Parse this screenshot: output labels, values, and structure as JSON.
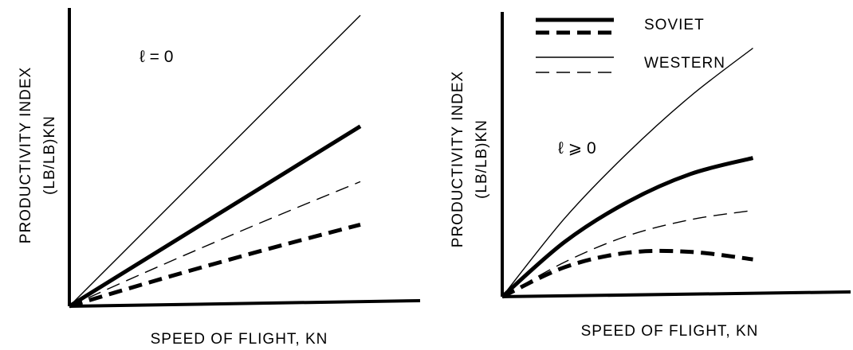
{
  "chart_data": [
    {
      "type": "line",
      "xlabel": "SPEED OF FLIGHT, KN",
      "ylabel_line1": "PRODUCTIVITY INDEX",
      "ylabel_line2": "(LB/LB)KN",
      "annotation": "ℓ = 0",
      "x": [
        0,
        0.25,
        0.5,
        0.75,
        1.0
      ],
      "series": [
        {
          "name": "SOVIET",
          "style": "solid",
          "weight": "heavy",
          "values": [
            0,
            0.245,
            0.49,
            0.735,
            0.98
          ]
        },
        {
          "name": "SOVIET",
          "style": "dashed",
          "weight": "heavy",
          "values": [
            0,
            0.115,
            0.225,
            0.33,
            0.43
          ]
        },
        {
          "name": "WESTERN",
          "style": "solid",
          "weight": "light",
          "values": [
            0,
            0.4,
            0.8,
            1.2,
            1.6
          ]
        },
        {
          "name": "WESTERN",
          "style": "dashed",
          "weight": "light",
          "values": [
            0,
            0.175,
            0.345,
            0.51,
            0.67
          ]
        }
      ],
      "xlim": [
        0,
        1.2
      ],
      "ylim": [
        0,
        1.6
      ],
      "x_extent": 1.0,
      "grid": false
    },
    {
      "type": "line",
      "xlabel": "SPEED OF FLIGHT, KN",
      "ylabel_line1": "PRODUCTIVITY INDEX",
      "ylabel_line2": "(LB/LB)KN",
      "annotation": "ℓ ⩾ 0",
      "x": [
        0,
        0.25,
        0.5,
        0.75,
        1.0
      ],
      "series": [
        {
          "name": "SOVIET",
          "style": "solid",
          "weight": "heavy",
          "values": [
            0,
            0.32,
            0.55,
            0.71,
            0.8
          ]
        },
        {
          "name": "SOVIET",
          "style": "dashed",
          "weight": "heavy",
          "values": [
            0,
            0.17,
            0.25,
            0.25,
            0.2
          ]
        },
        {
          "name": "WESTERN",
          "style": "solid",
          "weight": "light",
          "values": [
            0,
            0.46,
            0.84,
            1.17,
            1.45
          ]
        },
        {
          "name": "WESTERN",
          "style": "dashed",
          "weight": "light",
          "values": [
            0,
            0.2,
            0.35,
            0.44,
            0.49
          ]
        }
      ],
      "xlim": [
        0,
        1.2
      ],
      "ylim": [
        0,
        1.6
      ],
      "x_extent": 0.85,
      "grid": false
    }
  ],
  "legend": {
    "placement": "top",
    "items": [
      {
        "label": "SOVIET"
      },
      {
        "label": "WESTERN"
      }
    ]
  },
  "colors": {
    "ink": "#000000",
    "background": "#ffffff"
  }
}
